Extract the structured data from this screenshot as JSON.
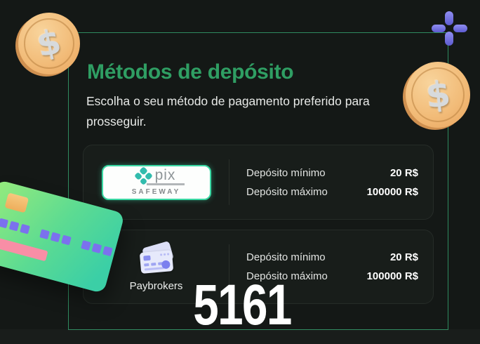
{
  "page": {
    "title": "Métodos de depósito",
    "subtitle": "Escolha o seu método de pagamento preferido para prosseguir.",
    "overlay_number": "5161"
  },
  "methods": [
    {
      "name": "pix-safeway",
      "logo": {
        "brand": "pix",
        "subbrand": "SAFEWAY"
      },
      "rows": [
        {
          "label": "Depósito mínimo",
          "value": "20 R$"
        },
        {
          "label": "Depósito máximo",
          "value": "100000 R$"
        }
      ]
    },
    {
      "name": "paybrokers",
      "label": "Paybrokers",
      "rows": [
        {
          "label": "Depósito mínimo",
          "value": "20 R$"
        },
        {
          "label": "Depósito máximo",
          "value": "100000 R$"
        }
      ]
    }
  ],
  "decorations": {
    "coin_symbol": "$"
  },
  "colors": {
    "accent_green": "#2f9e63",
    "frame_green": "#2f8a5f",
    "pix_teal": "#32bcad",
    "pix_border": "#3ad9a4",
    "purple": "#6c6ce0",
    "card_bg": "#181d1a",
    "page_bg": "#141816"
  }
}
